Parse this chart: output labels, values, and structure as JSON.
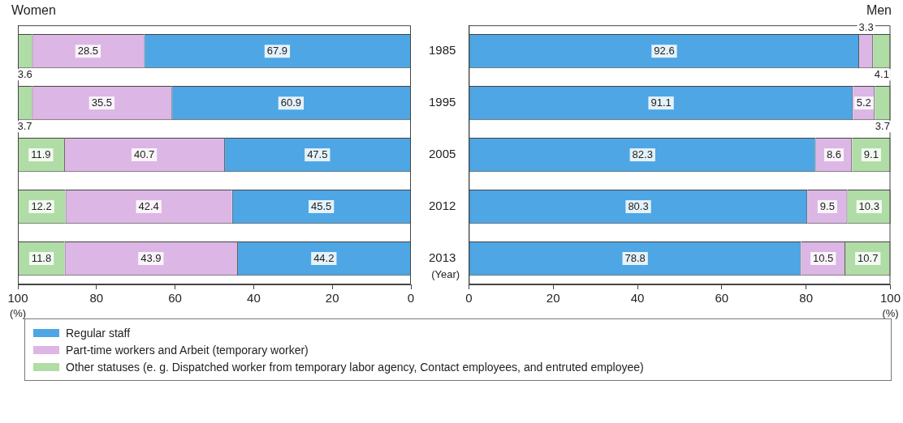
{
  "chart_data": [
    {
      "type": "bar",
      "title": "Women",
      "orientation": "horizontal",
      "stacked": true,
      "categories": [
        "1985",
        "1995",
        "2005",
        "2012",
        "2013"
      ],
      "series": [
        {
          "name": "Regular staff",
          "color": "#4ea6e4",
          "values": [
            67.9,
            60.9,
            47.5,
            45.5,
            44.2
          ]
        },
        {
          "name": "Part-time workers and Arbeit (temporary worker)",
          "color": "#dcb6e4",
          "values": [
            28.5,
            35.5,
            40.7,
            42.4,
            43.9
          ]
        },
        {
          "name": "Other statuses (e. g. Dispatched worker from temporary labor agency, Contact employees, and entruted employee)",
          "color": "#b0dca6",
          "values": [
            3.6,
            3.7,
            11.9,
            12.2,
            11.8
          ]
        }
      ],
      "xlim": [
        100,
        0
      ],
      "xticks": [
        100,
        80,
        60,
        40,
        20,
        0
      ],
      "xlabel": "(%)",
      "tick_labels": "x",
      "data_labels": true,
      "legend": "bottom"
    },
    {
      "type": "bar",
      "title": "Men",
      "orientation": "horizontal",
      "stacked": true,
      "categories": [
        "1985",
        "1995",
        "2005",
        "2012",
        "2013"
      ],
      "series": [
        {
          "color": "#4ea6e4",
          "values": [
            92.6,
            91.1,
            82.3,
            80.3,
            78.8
          ]
        },
        {
          "color": "#dcb6e4",
          "values": [
            3.3,
            5.2,
            8.6,
            9.5,
            10.5
          ]
        },
        {
          "color": "#b0dca6",
          "values": [
            4.1,
            3.7,
            9.1,
            10.3,
            10.7
          ]
        }
      ],
      "xlim": [
        0,
        100
      ],
      "xticks": [
        0,
        20,
        40,
        60,
        80,
        100
      ],
      "xlabel": "(%)",
      "data_labels": true,
      "annotations": [
        "(Year)"
      ]
    }
  ]
}
